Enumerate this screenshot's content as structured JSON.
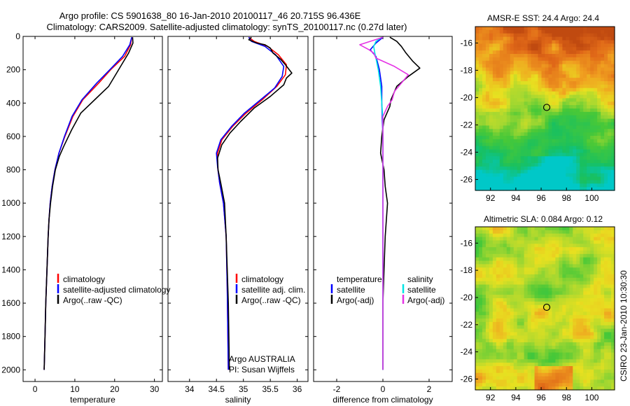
{
  "header": {
    "title_line1": "Argo profile: CS 5901638_80 16-Jan-2010 20100117_46 20.715S 96.436E",
    "title_line2": "Climatology: CARS2009. Satellite-adjusted climatology: synTS_20100117.nc (0.27d later)"
  },
  "colors": {
    "climatology": "#ff0000",
    "satellite": "#0000ff",
    "argo": "#000000",
    "salinity_satellite": "#00e5e5",
    "salinity_argo": "#e533e5"
  },
  "chart_data": [
    {
      "id": "temperature",
      "type": "line",
      "xlabel": "temperature",
      "xlim": [
        -3,
        32
      ],
      "xticks": [
        0,
        10,
        20,
        30
      ],
      "ylim": [
        0,
        2070
      ],
      "yticks": [
        0,
        200,
        400,
        600,
        800,
        1000,
        1200,
        1400,
        1600,
        1800,
        2000
      ],
      "y_reversed": true,
      "legend": [
        "climatology",
        "satellite-adjusted climatology",
        "Argo(..raw -QC)"
      ],
      "series": [
        {
          "key": "climatology",
          "color": "#ff0000",
          "points": [
            [
              24.3,
              5
            ],
            [
              24.0,
              50
            ],
            [
              22.5,
              120
            ],
            [
              19.0,
              200
            ],
            [
              16.0,
              280
            ],
            [
              12.0,
              380
            ],
            [
              9.5,
              480
            ],
            [
              7.5,
              600
            ],
            [
              6.0,
              700
            ],
            [
              5.0,
              800
            ],
            [
              4.3,
              900
            ],
            [
              3.8,
              1000
            ],
            [
              3.5,
              1100
            ],
            [
              3.3,
              1200
            ],
            [
              3.0,
              1400
            ],
            [
              2.7,
              1600
            ],
            [
              2.5,
              1800
            ],
            [
              2.3,
              2000
            ]
          ]
        },
        {
          "key": "satellite",
          "color": "#0000ff",
          "points": [
            [
              24.3,
              5
            ],
            [
              23.8,
              50
            ],
            [
              22.0,
              120
            ],
            [
              18.8,
              200
            ],
            [
              15.5,
              280
            ],
            [
              11.8,
              380
            ],
            [
              9.3,
              480
            ],
            [
              7.4,
              600
            ],
            [
              6.0,
              700
            ],
            [
              5.0,
              800
            ],
            [
              4.3,
              900
            ],
            [
              3.8,
              1000
            ],
            [
              3.5,
              1100
            ],
            [
              3.3,
              1200
            ],
            [
              3.0,
              1400
            ],
            [
              2.7,
              1600
            ],
            [
              2.5,
              1800
            ],
            [
              2.3,
              2000
            ]
          ]
        },
        {
          "key": "argo",
          "color": "#000000",
          "points": [
            [
              24.5,
              5
            ],
            [
              24.6,
              40
            ],
            [
              23.5,
              100
            ],
            [
              22.0,
              160
            ],
            [
              20.5,
              220
            ],
            [
              18.5,
              300
            ],
            [
              15.0,
              380
            ],
            [
              11.5,
              460
            ],
            [
              9.2,
              560
            ],
            [
              7.2,
              660
            ],
            [
              6.1,
              720
            ],
            [
              5.1,
              800
            ],
            [
              4.4,
              900
            ],
            [
              3.9,
              1000
            ],
            [
              3.5,
              1100
            ],
            [
              3.3,
              1200
            ],
            [
              3.0,
              1400
            ],
            [
              2.7,
              1600
            ],
            [
              2.5,
              1800
            ],
            [
              2.3,
              2000
            ]
          ]
        }
      ]
    },
    {
      "id": "salinity",
      "type": "line",
      "xlabel": "salinity",
      "xlim": [
        33.6,
        36.2
      ],
      "xticks": [
        34,
        34.5,
        35,
        35.5,
        36
      ],
      "ylim": [
        0,
        2070
      ],
      "y_reversed": true,
      "legend": [
        "climatology",
        "satellite adj. clim.",
        "Argo(..raw -QC)"
      ],
      "annotation": [
        "Argo AUSTRALIA",
        "PI: Susan Wijffels"
      ],
      "series": [
        {
          "key": "climatology",
          "color": "#ff0000",
          "points": [
            [
              35.1,
              5
            ],
            [
              35.2,
              30
            ],
            [
              35.45,
              60
            ],
            [
              35.65,
              110
            ],
            [
              35.8,
              170
            ],
            [
              35.78,
              230
            ],
            [
              35.62,
              300
            ],
            [
              35.35,
              380
            ],
            [
              35.05,
              460
            ],
            [
              34.8,
              540
            ],
            [
              34.6,
              620
            ],
            [
              34.52,
              700
            ],
            [
              34.52,
              780
            ],
            [
              34.56,
              880
            ],
            [
              34.63,
              1000
            ],
            [
              34.68,
              1200
            ],
            [
              34.7,
              1500
            ],
            [
              34.72,
              2000
            ]
          ]
        },
        {
          "key": "satellite",
          "color": "#0000ff",
          "points": [
            [
              35.1,
              5
            ],
            [
              35.15,
              30
            ],
            [
              35.4,
              60
            ],
            [
              35.6,
              110
            ],
            [
              35.75,
              180
            ],
            [
              35.72,
              240
            ],
            [
              35.58,
              310
            ],
            [
              35.32,
              380
            ],
            [
              35.02,
              460
            ],
            [
              34.78,
              540
            ],
            [
              34.58,
              620
            ],
            [
              34.5,
              700
            ],
            [
              34.52,
              780
            ],
            [
              34.56,
              880
            ],
            [
              34.63,
              1000
            ],
            [
              34.68,
              1200
            ],
            [
              34.7,
              1500
            ],
            [
              34.72,
              2000
            ]
          ]
        },
        {
          "key": "argo",
          "color": "#000000",
          "points": [
            [
              35.15,
              5
            ],
            [
              35.1,
              20
            ],
            [
              35.25,
              40
            ],
            [
              35.4,
              50
            ],
            [
              35.5,
              70
            ],
            [
              35.55,
              100
            ],
            [
              35.7,
              140
            ],
            [
              35.78,
              170
            ],
            [
              35.9,
              220
            ],
            [
              35.8,
              250
            ],
            [
              35.75,
              290
            ],
            [
              35.5,
              360
            ],
            [
              35.2,
              430
            ],
            [
              34.95,
              510
            ],
            [
              34.75,
              580
            ],
            [
              34.6,
              650
            ],
            [
              34.52,
              730
            ],
            [
              34.53,
              800
            ],
            [
              34.58,
              880
            ],
            [
              34.65,
              1000
            ],
            [
              34.68,
              1200
            ],
            [
              34.72,
              1600
            ],
            [
              34.74,
              2000
            ]
          ]
        }
      ]
    },
    {
      "id": "difference",
      "type": "line",
      "xlabel": "difference from climatology",
      "xlim": [
        -3,
        3
      ],
      "xticks": [
        -2,
        0,
        2
      ],
      "ylim": [
        0,
        2070
      ],
      "y_reversed": true,
      "legend": [
        "temperature",
        "satellite",
        "Argo(-adj)",
        "salinity",
        "satellite",
        "Argo(-adj)"
      ],
      "series": [
        {
          "key": "temperature_satellite",
          "color": "#0000ff",
          "points": [
            [
              0.0,
              5
            ],
            [
              -0.3,
              40
            ],
            [
              -0.55,
              80
            ],
            [
              -0.3,
              120
            ],
            [
              -0.15,
              200
            ],
            [
              -0.05,
              300
            ],
            [
              -0.05,
              400
            ],
            [
              0.0,
              600
            ],
            [
              0.0,
              800
            ],
            [
              0.0,
              1200
            ],
            [
              0.0,
              1600
            ],
            [
              0.0,
              2000
            ]
          ]
        },
        {
          "key": "temperature_argo",
          "color": "#000000",
          "points": [
            [
              0.3,
              5
            ],
            [
              0.6,
              30
            ],
            [
              0.8,
              60
            ],
            [
              1.0,
              100
            ],
            [
              1.3,
              150
            ],
            [
              1.6,
              190
            ],
            [
              1.1,
              240
            ],
            [
              0.6,
              300
            ],
            [
              0.35,
              380
            ],
            [
              0.3,
              420
            ],
            [
              0.05,
              500
            ],
            [
              -0.05,
              600
            ],
            [
              -0.1,
              700
            ],
            [
              0.05,
              800
            ],
            [
              0.1,
              900
            ],
            [
              0.2,
              1000
            ],
            [
              0.1,
              1200
            ],
            [
              0.05,
              1400
            ],
            [
              0.0,
              1600
            ],
            [
              0.0,
              1800
            ],
            [
              0.0,
              2000
            ]
          ]
        },
        {
          "key": "salinity_satellite",
          "color": "#00e5e5",
          "points": [
            [
              -0.05,
              5
            ],
            [
              -0.3,
              30
            ],
            [
              -0.4,
              60
            ],
            [
              -0.35,
              100
            ],
            [
              -0.2,
              200
            ],
            [
              -0.1,
              300
            ],
            [
              -0.05,
              400
            ],
            [
              0.0,
              500
            ],
            [
              0.0,
              600
            ],
            [
              0.0,
              800
            ],
            [
              0.0,
              1000
            ],
            [
              0.0,
              1500
            ],
            [
              0.0,
              2000
            ]
          ]
        },
        {
          "key": "salinity_argo",
          "color": "#e533e5",
          "points": [
            [
              0.0,
              5
            ],
            [
              -1.0,
              50
            ],
            [
              -0.6,
              80
            ],
            [
              -0.4,
              100
            ],
            [
              -0.3,
              130
            ],
            [
              0.5,
              180
            ],
            [
              1.1,
              230
            ],
            [
              0.8,
              280
            ],
            [
              0.5,
              330
            ],
            [
              0.4,
              380
            ],
            [
              0.2,
              420
            ],
            [
              0.0,
              480
            ],
            [
              0.0,
              600
            ],
            [
              0.0,
              1000
            ],
            [
              0.0,
              1500
            ],
            [
              0.0,
              2000
            ]
          ]
        }
      ]
    },
    {
      "id": "sst_map",
      "type": "heatmap",
      "title": "AMSR-E SST: 24.4 Argo: 24.4",
      "xlim": [
        90.8,
        101.8
      ],
      "ylim": [
        -26.8,
        -14.8
      ],
      "xticks": [
        92,
        94,
        96,
        98,
        100
      ],
      "yticks": [
        -16,
        -18,
        -20,
        -22,
        -24,
        -26
      ],
      "marker": [
        96.44,
        -20.72
      ]
    },
    {
      "id": "sla_map",
      "type": "heatmap",
      "title": "Altimetric SLA: 0.084 Argo: 0.12",
      "xlim": [
        90.8,
        101.8
      ],
      "ylim": [
        -26.8,
        -14.8
      ],
      "xticks": [
        92,
        94,
        96,
        98,
        100
      ],
      "yticks": [
        -16,
        -18,
        -20,
        -22,
        -24,
        -26
      ],
      "marker": [
        96.44,
        -20.72
      ]
    }
  ],
  "footer": {
    "side_label": "CSIRO 23-Jan-2010 10:30:30"
  }
}
